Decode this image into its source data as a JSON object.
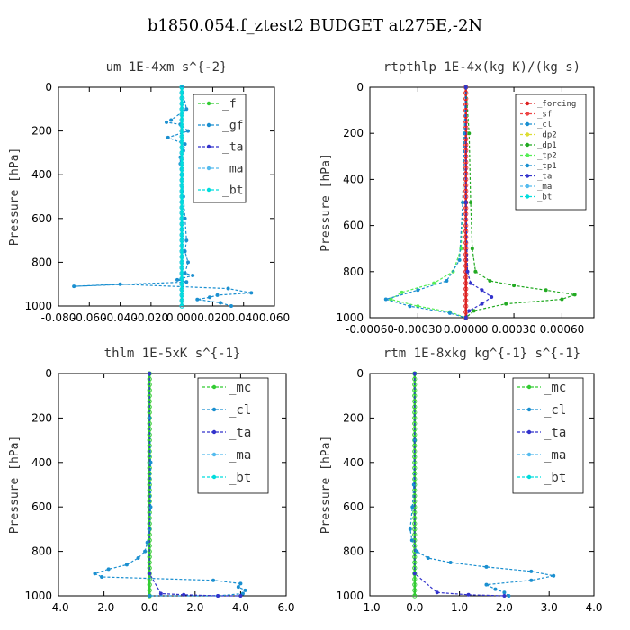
{
  "title": "b1850.054.f_ztest2  BUDGET at275E,-2N",
  "chart_data": [
    {
      "type": "line",
      "title": "um   1E-4xm s^{-2}",
      "ylabel": "Pressure [hPa]",
      "xlim": [
        -0.08,
        0.06
      ],
      "ylim": [
        1000,
        0
      ],
      "xticks": [
        "-0.080",
        "-0.060",
        "-0.040",
        "-0.020",
        "0.000",
        "0.020",
        "0.040",
        "0.060"
      ],
      "yticks": [
        "0",
        "200",
        "400",
        "600",
        "800",
        "1000"
      ],
      "legend": [
        "_f",
        "_gf",
        "_ta",
        "_ma",
        "_bt"
      ],
      "series": [
        {
          "name": "_f",
          "color": "#33cc33",
          "x": [
            0,
            0,
            0,
            0,
            0,
            0,
            0,
            0,
            0,
            0,
            0
          ],
          "y": [
            0,
            100,
            200,
            300,
            400,
            500,
            600,
            700,
            800,
            900,
            1000
          ]
        },
        {
          "name": "_gf",
          "color": "#1a8fd0",
          "x": [
            0.0,
            0.003,
            -0.007,
            -0.01,
            -0.001,
            0.004,
            -0.009,
            0.002,
            0.001,
            -0.001,
            -0.001,
            0.0,
            0.001,
            0.002,
            0.003,
            0.002,
            0.004,
            0.002,
            0.007,
            -0.003,
            0.003,
            -0.07,
            -0.04,
            0.03,
            0.045,
            0.023,
            0.018,
            0.01,
            0.025,
            0.032
          ],
          "y": [
            0,
            100,
            150,
            160,
            170,
            200,
            230,
            260,
            290,
            320,
            350,
            400,
            500,
            600,
            700,
            750,
            800,
            850,
            860,
            880,
            890,
            910,
            900,
            920,
            940,
            950,
            960,
            970,
            985,
            1000
          ]
        },
        {
          "name": "_ta",
          "color": "#3333cc",
          "x": [
            0,
            0,
            0,
            0
          ],
          "y": [
            0,
            300,
            600,
            1000
          ]
        },
        {
          "name": "_ma",
          "color": "#55bbee",
          "x": [
            0,
            0,
            0,
            0
          ],
          "y": [
            0,
            300,
            600,
            1000
          ]
        },
        {
          "name": "_bt",
          "color": "#00dddd",
          "x": [
            0,
            0,
            0,
            0
          ],
          "y": [
            0,
            300,
            600,
            1000
          ]
        }
      ]
    },
    {
      "type": "line",
      "title": "rtpthlp   1E-4x(kg K)/(kg s)",
      "ylabel": "Pressure [hPa]",
      "xlim": [
        -0.0006,
        0.0008
      ],
      "ylim": [
        1000,
        0
      ],
      "xticks": [
        "-0.00060",
        "-0.00030",
        "0.00000",
        "0.00030",
        "0.00060"
      ],
      "yticks": [
        "0",
        "200",
        "400",
        "600",
        "800",
        "1000"
      ],
      "legend": [
        "_forcing",
        "_sf",
        "_cl",
        "_dp2",
        "_dp1",
        "_tp2",
        "_tp1",
        "_ta",
        "_ma",
        "_bt"
      ],
      "series": [
        {
          "name": "_forcing",
          "color": "#dd2222",
          "x": [
            0,
            0,
            0,
            0
          ],
          "y": [
            0,
            300,
            600,
            1000
          ]
        },
        {
          "name": "_dp1",
          "color": "#22aa22",
          "x": [
            0.0,
            2e-05,
            3e-05,
            4e-05,
            6e-05,
            0.00015,
            0.0003,
            0.0005,
            0.00068,
            0.0006,
            0.00025,
            5e-05,
            0.0
          ],
          "y": [
            0,
            200,
            500,
            700,
            800,
            840,
            860,
            880,
            900,
            920,
            940,
            970,
            1000
          ]
        },
        {
          "name": "_tp2",
          "color": "#55ee55",
          "x": [
            0.0,
            -1e-05,
            -2e-05,
            -3e-05,
            -8e-05,
            -0.0002,
            -0.0004,
            -0.00047,
            -0.0003,
            -0.0001,
            0.0
          ],
          "y": [
            0,
            200,
            500,
            700,
            800,
            850,
            890,
            920,
            950,
            975,
            1000
          ]
        },
        {
          "name": "_tp1",
          "color": "#1a8fd0",
          "x": [
            0.0,
            -1e-05,
            -2e-05,
            -4e-05,
            -0.00012,
            -0.0003,
            -0.0005,
            -0.00035,
            -0.0001,
            0.0
          ],
          "y": [
            0,
            200,
            500,
            750,
            840,
            880,
            920,
            950,
            980,
            1000
          ]
        },
        {
          "name": "_ta",
          "color": "#3333cc",
          "x": [
            0.0,
            0.0,
            1e-05,
            3e-05,
            0.0001,
            0.00016,
            0.0001,
            2e-05,
            0.0
          ],
          "y": [
            0,
            500,
            800,
            850,
            880,
            910,
            940,
            970,
            1000
          ]
        }
      ]
    },
    {
      "type": "line",
      "title": "thlm   1E-5xK s^{-1}",
      "ylabel": "Pressure [hPa]",
      "xlim": [
        -4.0,
        6.0
      ],
      "ylim": [
        1000,
        0
      ],
      "xticks": [
        "-4.0",
        "-2.0",
        "0.0",
        "2.0",
        "4.0",
        "6.0"
      ],
      "yticks": [
        "0",
        "200",
        "400",
        "600",
        "800",
        "1000"
      ],
      "legend": [
        "_mc",
        "_cl",
        "_ta",
        "_ma",
        "_bt"
      ],
      "series": [
        {
          "name": "_mc",
          "color": "#33cc33",
          "x": [
            0,
            0,
            0,
            0,
            0
          ],
          "y": [
            0,
            250,
            500,
            750,
            1000
          ]
        },
        {
          "name": "_cl",
          "color": "#1a8fd0",
          "x": [
            0.0,
            0.0,
            0.05,
            0.05,
            0.0,
            -0.1,
            -0.2,
            -0.5,
            -1.0,
            -1.8,
            -2.4,
            -2.1,
            2.8,
            4.0,
            3.9,
            4.2,
            4.1,
            3.0,
            0.0
          ],
          "y": [
            0,
            200,
            400,
            600,
            700,
            760,
            800,
            830,
            860,
            880,
            900,
            915,
            930,
            945,
            960,
            975,
            990,
            1000,
            1000
          ]
        },
        {
          "name": "_ta",
          "color": "#3333cc",
          "x": [
            0,
            0,
            0.5,
            1.5,
            3.0,
            4.0
          ],
          "y": [
            0,
            900,
            990,
            995,
            1000,
            1000
          ]
        }
      ]
    },
    {
      "type": "line",
      "title": "rtm   1E-8xkg kg^{-1} s^{-1}",
      "ylabel": "Pressure [hPa]",
      "xlim": [
        -1.0,
        4.0
      ],
      "ylim": [
        1000,
        0
      ],
      "xticks": [
        "-1.0",
        "0.0",
        "1.0",
        "2.0",
        "3.0",
        "4.0"
      ],
      "yticks": [
        "0",
        "200",
        "400",
        "600",
        "800",
        "1000"
      ],
      "legend": [
        "_mc",
        "_cl",
        "_ta",
        "_ma",
        "_bt"
      ],
      "series": [
        {
          "name": "_mc",
          "color": "#33cc33",
          "x": [
            0,
            0,
            0,
            0,
            0
          ],
          "y": [
            0,
            250,
            500,
            750,
            1000
          ]
        },
        {
          "name": "_cl",
          "color": "#1a8fd0",
          "x": [
            0.0,
            0.0,
            -0.02,
            -0.05,
            -0.1,
            -0.06,
            0.05,
            0.3,
            0.8,
            1.6,
            2.6,
            3.1,
            2.6,
            1.6,
            1.8,
            2.0,
            2.1
          ],
          "y": [
            0,
            300,
            500,
            600,
            700,
            750,
            800,
            830,
            850,
            870,
            890,
            910,
            930,
            950,
            970,
            985,
            1000
          ]
        },
        {
          "name": "_ta",
          "color": "#3333cc",
          "x": [
            0,
            0,
            0.5,
            1.2,
            2.0
          ],
          "y": [
            0,
            900,
            985,
            995,
            1000
          ]
        }
      ]
    }
  ]
}
